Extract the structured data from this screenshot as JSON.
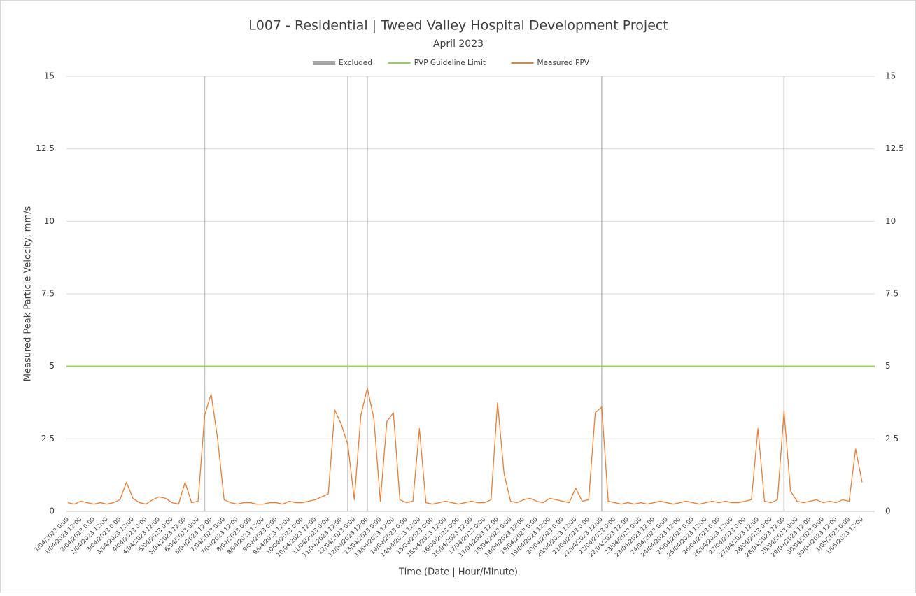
{
  "chart_data": {
    "type": "line",
    "title": "L007 -  Residential | Tweed Valley Hospital Development Project",
    "subtitle": "April 2023",
    "y_label": "Measured Peak Particle Velocity, mm/s",
    "x_label": "Time (Date | Hour/Minute)",
    "categories": [
      "1/04/2023 0:00",
      null,
      "1/04/2023 12:00",
      null,
      "2/04/2023 0:00",
      null,
      "2/04/2023 12:00",
      null,
      "3/04/2023 0:00",
      null,
      "3/04/2023 12:00",
      null,
      "4/04/2023 0:00",
      null,
      "4/04/2023 12:00",
      null,
      "5/04/2023 0:00",
      null,
      "5/04/2023 12:00",
      null,
      "6/04/2023 0:00",
      null,
      "6/04/2023 12:00",
      null,
      "7/04/2023 0:00",
      null,
      "7/04/2023 12:00",
      null,
      "8/04/2023 0:00",
      null,
      "8/04/2023 12:00",
      null,
      "9/04/2023 0:00",
      null,
      "9/04/2023 12:00",
      null,
      "10/04/2023 0:00",
      null,
      "10/04/2023 12:00",
      null,
      "11/04/2023 0:00",
      null,
      "11/04/2023 12:00",
      null,
      "12/04/2023 0:00",
      null,
      "12/04/2023 12:00",
      null,
      "13/04/2023 0:00",
      null,
      "13/04/2023 12:00",
      null,
      "14/04/2023 0:00",
      null,
      "14/04/2023 12:00",
      null,
      "15/04/2023 0:00",
      null,
      "15/04/2023 12:00",
      null,
      "16/04/2023 0:00",
      null,
      "16/04/2023 12:00",
      null,
      "17/04/2023 0:00",
      null,
      "17/04/2023 12:00",
      null,
      "18/04/2023 0:00",
      null,
      "18/04/2023 12:00",
      null,
      "19/04/2023 0:00",
      null,
      "19/04/2023 12:00",
      null,
      "20/04/2023 0:00",
      null,
      "20/04/2023 12:00",
      null,
      "21/04/2023 0:00",
      null,
      "21/04/2023 12:00",
      null,
      "22/04/2023 0:00",
      null,
      "22/04/2023 12:00",
      null,
      "23/04/2023 0:00",
      null,
      "23/04/2023 12:00",
      null,
      "24/04/2023 0:00",
      null,
      "24/04/2023 12:00",
      null,
      "25/04/2023 0:00",
      null,
      "25/04/2023 12:00",
      null,
      "26/04/2023 0:00",
      null,
      "26/04/2023 12:00",
      null,
      "27/04/2023 0:00",
      null,
      "27/04/2023 12:00",
      null,
      "28/04/2023 0:00",
      null,
      "28/04/2023 12:00",
      null,
      "29/04/2023 0:00",
      null,
      "29/04/2023 12:00",
      null,
      "30/04/2023 0:00",
      null,
      "30/04/2023 12:00",
      null,
      "1/05/2023 0:00",
      null,
      "1/05/2023 12:00"
    ],
    "series": [
      {
        "name": "Excluded",
        "type": "bar",
        "color": "#a6a6a6",
        "values": [
          null,
          null,
          null,
          null,
          null,
          null,
          null,
          null,
          null,
          null,
          null,
          null,
          null,
          null,
          null,
          null,
          null,
          null,
          null,
          null,
          null,
          15,
          null,
          null,
          null,
          null,
          null,
          null,
          null,
          null,
          null,
          null,
          null,
          null,
          null,
          null,
          null,
          null,
          null,
          null,
          null,
          null,
          null,
          15,
          null,
          null,
          15,
          null,
          null,
          null,
          null,
          null,
          null,
          null,
          null,
          null,
          null,
          null,
          null,
          null,
          null,
          null,
          null,
          null,
          null,
          null,
          null,
          null,
          null,
          null,
          null,
          null,
          null,
          null,
          null,
          null,
          null,
          null,
          null,
          null,
          null,
          null,
          15,
          null,
          null,
          null,
          null,
          null,
          null,
          null,
          null,
          null,
          null,
          null,
          null,
          null,
          null,
          null,
          null,
          null,
          null,
          null,
          null,
          null,
          null,
          null,
          null,
          null,
          null,
          null,
          15,
          null,
          null,
          null,
          null,
          null,
          null,
          null,
          null,
          null,
          null,
          null,
          null
        ]
      },
      {
        "name": "PVP Guideline Limit",
        "type": "hline",
        "color": "#92d050",
        "value": 5
      },
      {
        "name": "Measured PPV",
        "type": "line",
        "color": "#ed7d31",
        "values": [
          0.3,
          0.25,
          0.35,
          0.3,
          0.25,
          0.3,
          0.25,
          0.3,
          0.4,
          1.0,
          0.45,
          0.3,
          0.25,
          0.4,
          0.5,
          0.45,
          0.3,
          0.25,
          1.0,
          0.3,
          0.35,
          3.3,
          4.05,
          2.5,
          0.4,
          0.3,
          0.25,
          0.3,
          0.3,
          0.25,
          0.25,
          0.3,
          0.3,
          0.25,
          0.35,
          0.3,
          0.3,
          0.35,
          0.4,
          0.5,
          0.6,
          3.5,
          3.0,
          2.3,
          0.4,
          3.3,
          4.25,
          3.2,
          0.35,
          3.1,
          3.4,
          0.4,
          0.3,
          0.35,
          2.85,
          0.3,
          0.25,
          0.3,
          0.35,
          0.3,
          0.25,
          0.3,
          0.35,
          0.3,
          0.3,
          0.4,
          3.75,
          1.3,
          0.35,
          0.3,
          0.4,
          0.45,
          0.35,
          0.3,
          0.45,
          0.4,
          0.35,
          0.3,
          0.8,
          0.35,
          0.4,
          3.4,
          3.6,
          0.35,
          0.3,
          0.25,
          0.3,
          0.25,
          0.3,
          0.25,
          0.3,
          0.35,
          0.3,
          0.25,
          0.3,
          0.35,
          0.3,
          0.25,
          0.3,
          0.35,
          0.3,
          0.35,
          0.3,
          0.3,
          0.35,
          0.4,
          2.85,
          0.35,
          0.3,
          0.4,
          3.45,
          0.7,
          0.35,
          0.3,
          0.35,
          0.4,
          0.3,
          0.35,
          0.3,
          0.4,
          0.35,
          2.15,
          1.0
        ]
      }
    ],
    "ylim": [
      0,
      15
    ],
    "yticks": [
      0,
      2.5,
      5,
      7.5,
      10,
      12.5,
      15
    ],
    "y2lim": [
      0,
      15
    ],
    "y2ticks": [
      0,
      2.5,
      5,
      7.5,
      10,
      12.5,
      15
    ],
    "grid": true,
    "legend": "top"
  }
}
